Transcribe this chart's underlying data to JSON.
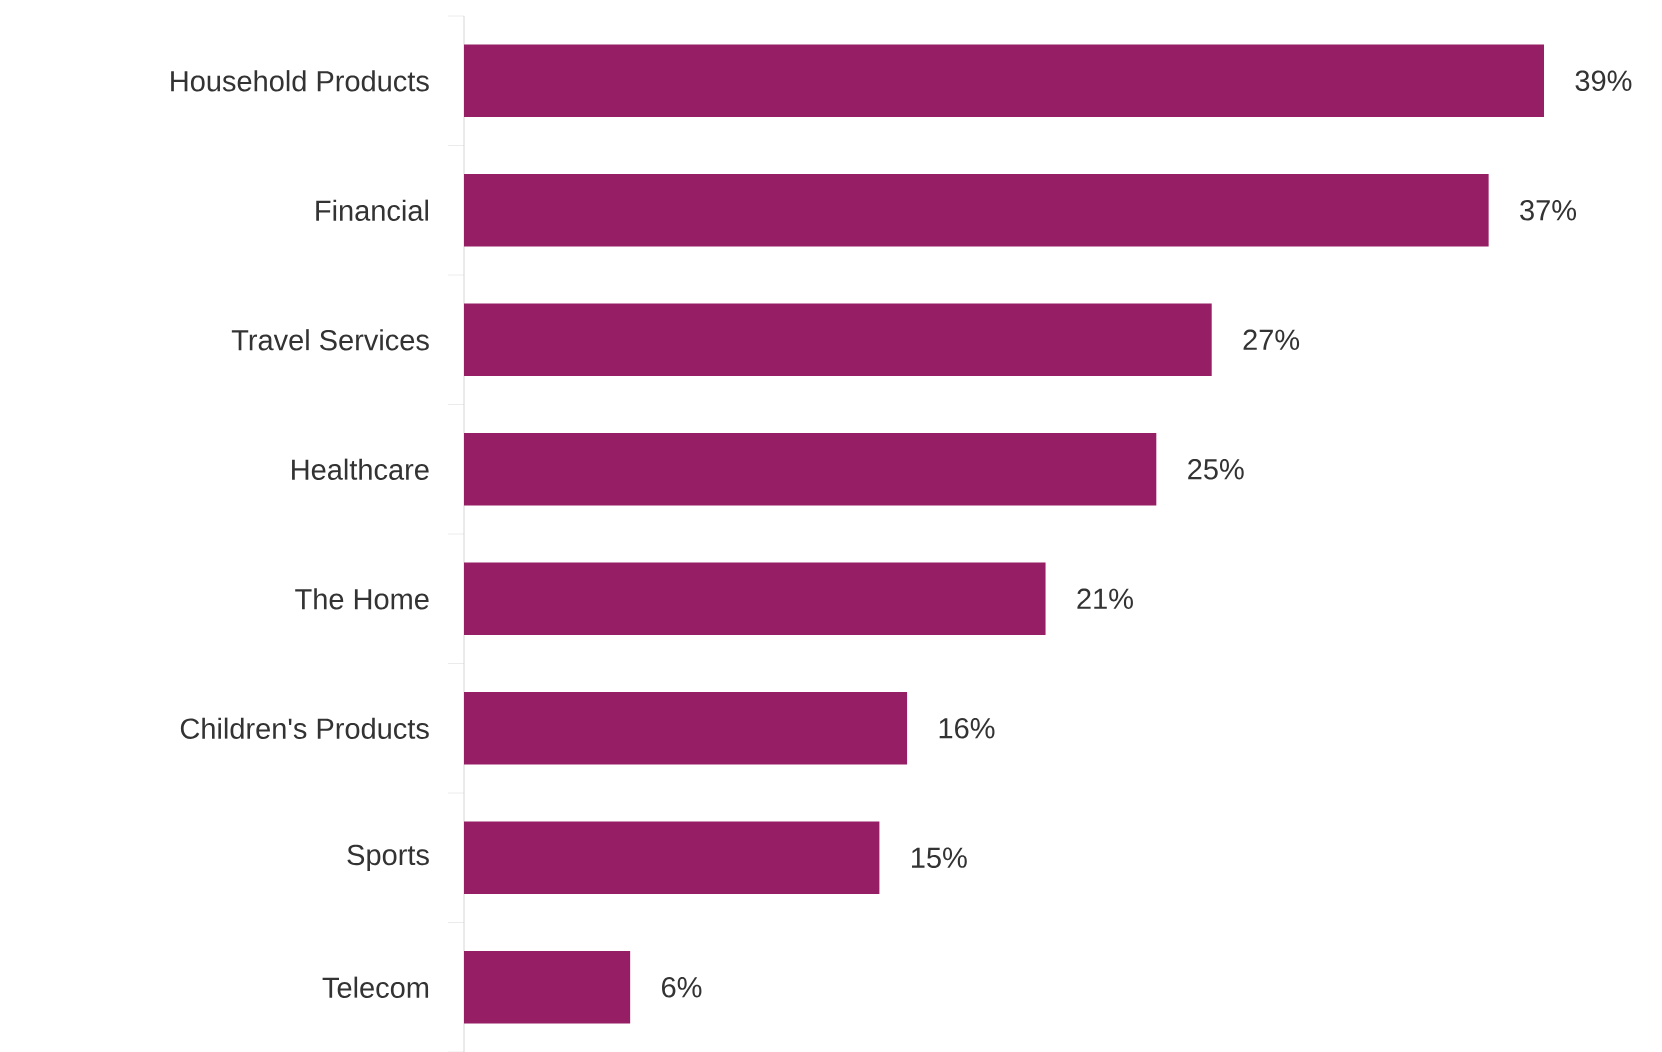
{
  "chart_data": {
    "type": "bar",
    "orientation": "horizontal",
    "categories": [
      "Household Products",
      "Financial",
      "Travel Services",
      "Healthcare",
      "The Home",
      "Children's Products",
      "Sports",
      "Telecom"
    ],
    "values": [
      39,
      37,
      27,
      25,
      21,
      16,
      15,
      6
    ],
    "value_labels": [
      "39%",
      "37%",
      "27%",
      "25%",
      "21%",
      "16%",
      "15%",
      "6%"
    ],
    "color": "#961e64"
  }
}
